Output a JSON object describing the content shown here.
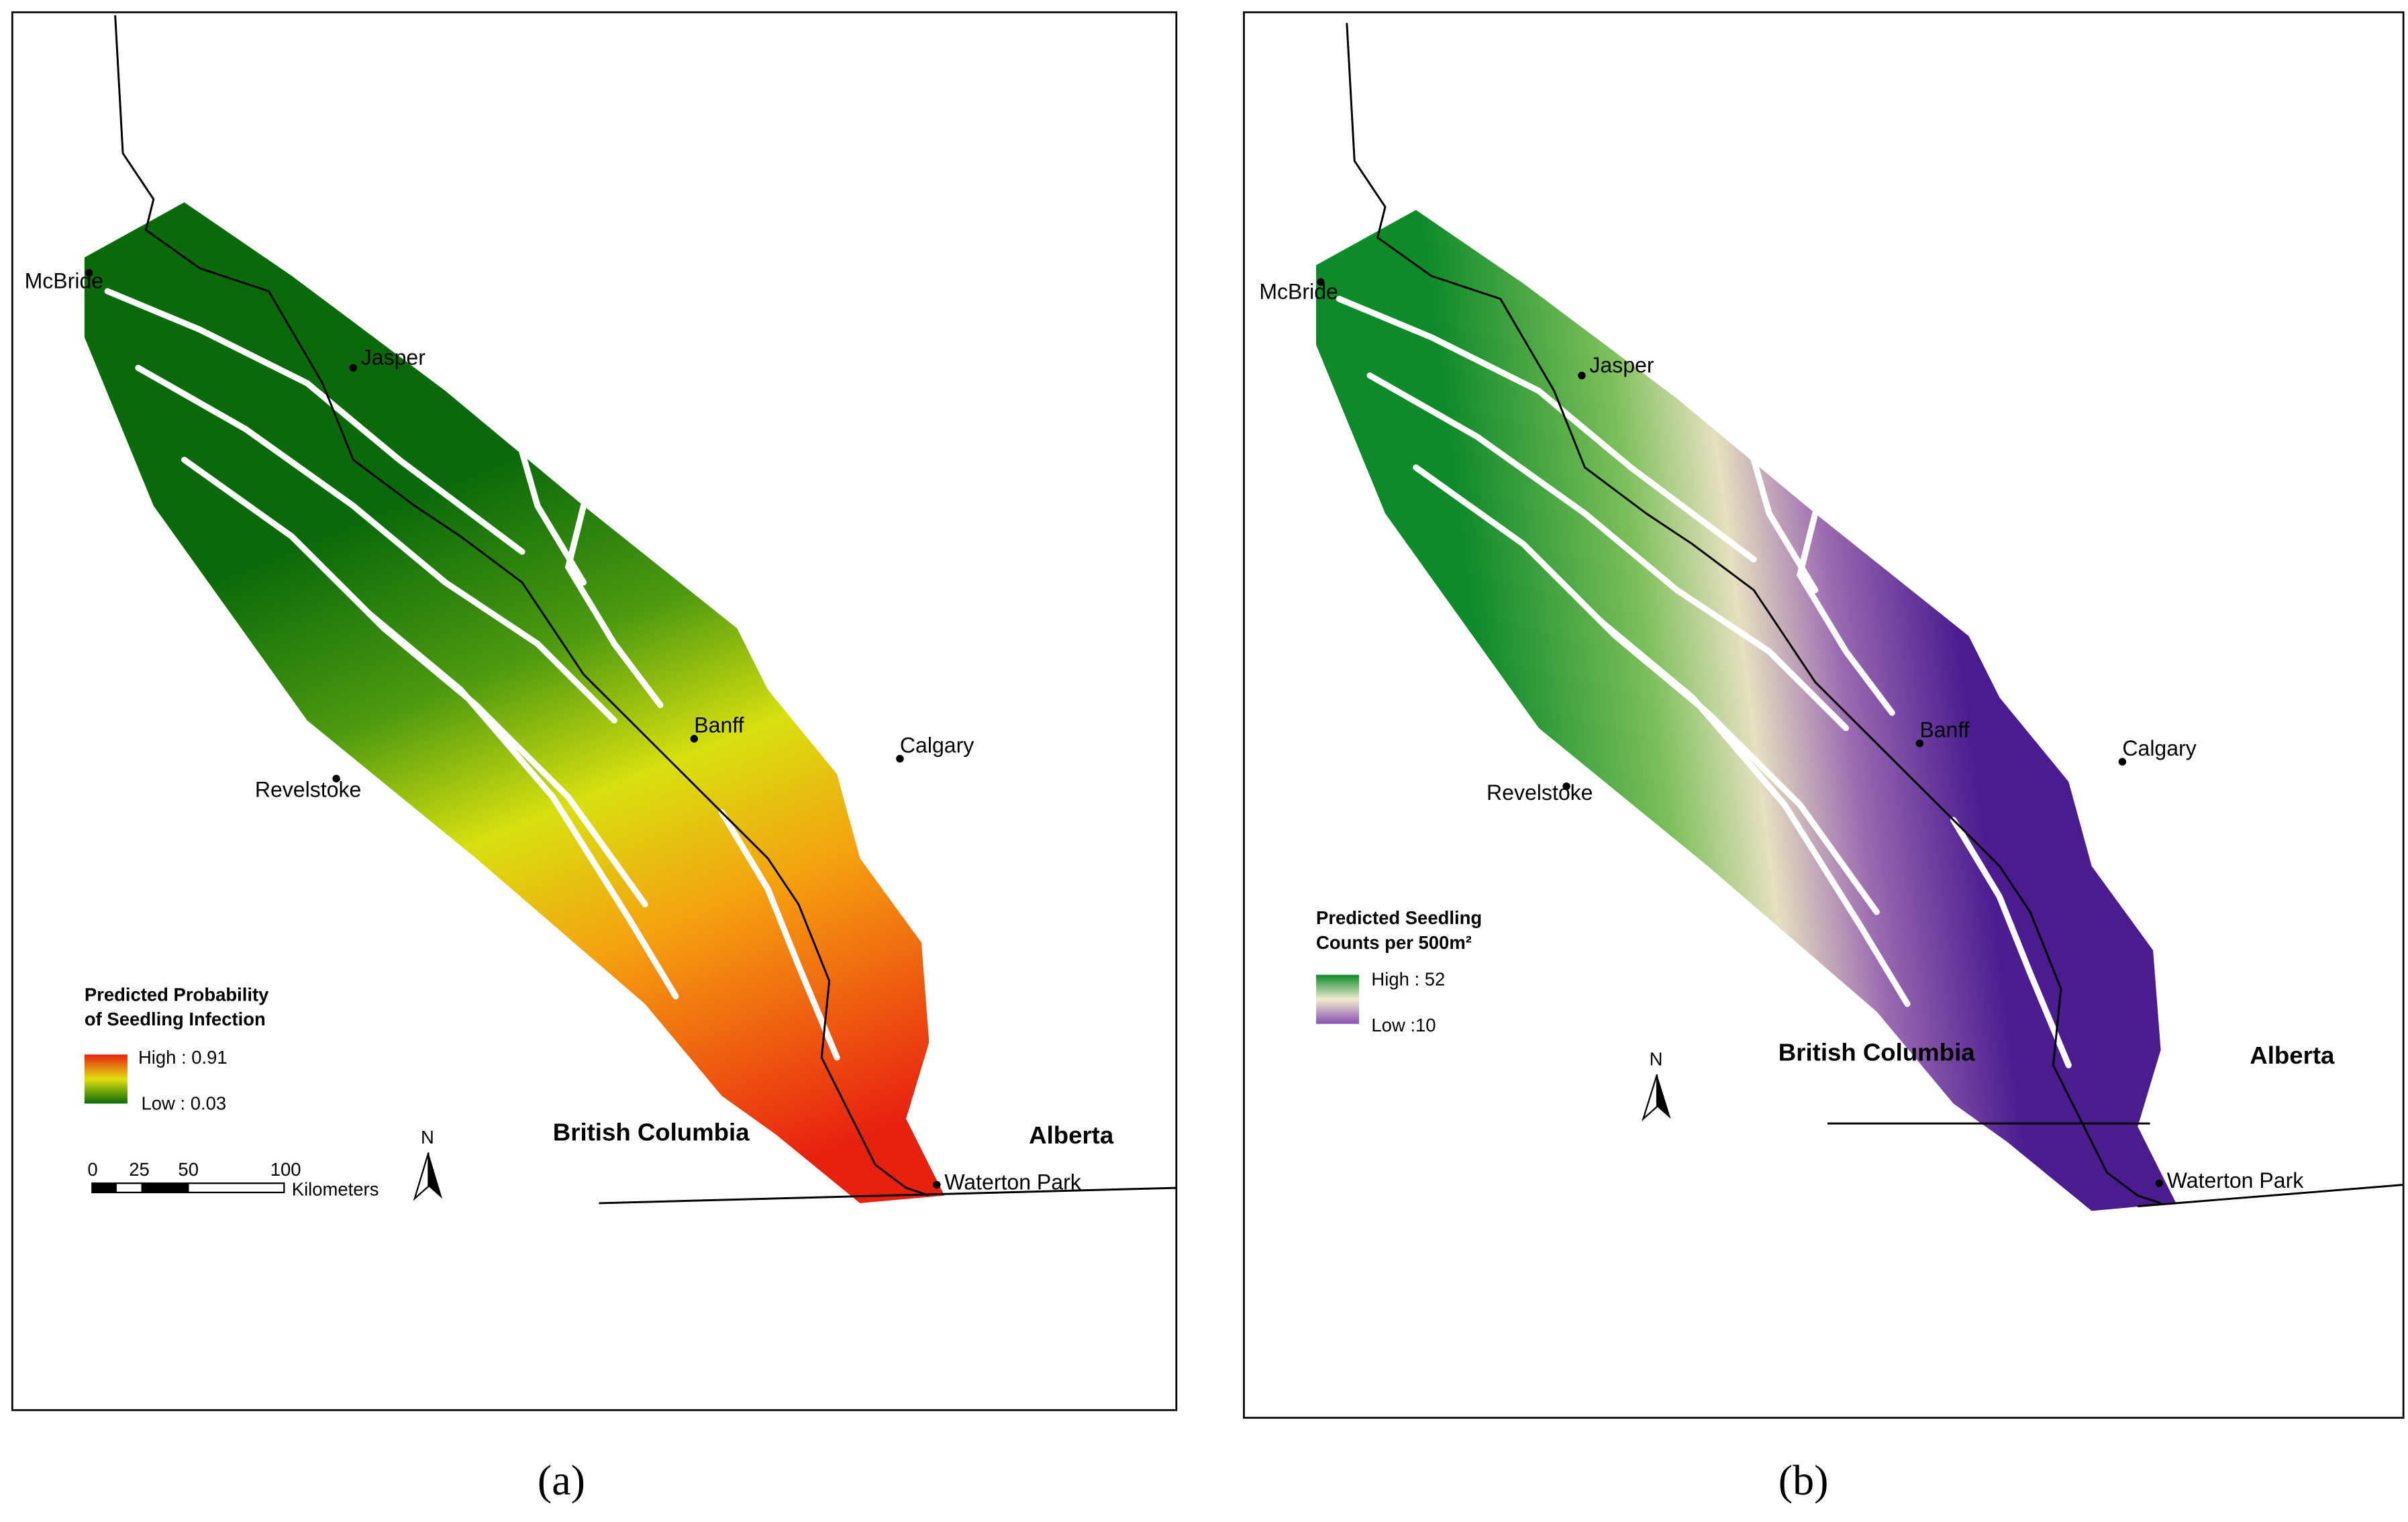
{
  "panels": [
    {
      "caption": "(a)",
      "cities": [
        "McBride",
        "Jasper",
        "Banff",
        "Calgary",
        "Revelstoke",
        "Waterton Park"
      ],
      "regions": [
        "British Columbia",
        "Alberta"
      ],
      "legend": {
        "title": [
          "Predicted Probability",
          "of Seedling Infection"
        ],
        "high": "High : 0.91",
        "low": "Low : 0.03"
      },
      "scale_bar": {
        "ticks": [
          "0",
          "25",
          "50",
          "100"
        ],
        "unit": "Kilometers"
      },
      "north": "N"
    },
    {
      "caption": "(b)",
      "cities": [
        "McBride",
        "Jasper",
        "Banff",
        "Calgary",
        "Revelstoke",
        "Waterton Park"
      ],
      "regions": [
        "British Columbia",
        "Alberta"
      ],
      "legend": {
        "title": [
          "Predicted Seedling",
          "Counts per 500m²"
        ],
        "high": "High : 52",
        "low": "Low :10"
      },
      "north": "N"
    }
  ]
}
